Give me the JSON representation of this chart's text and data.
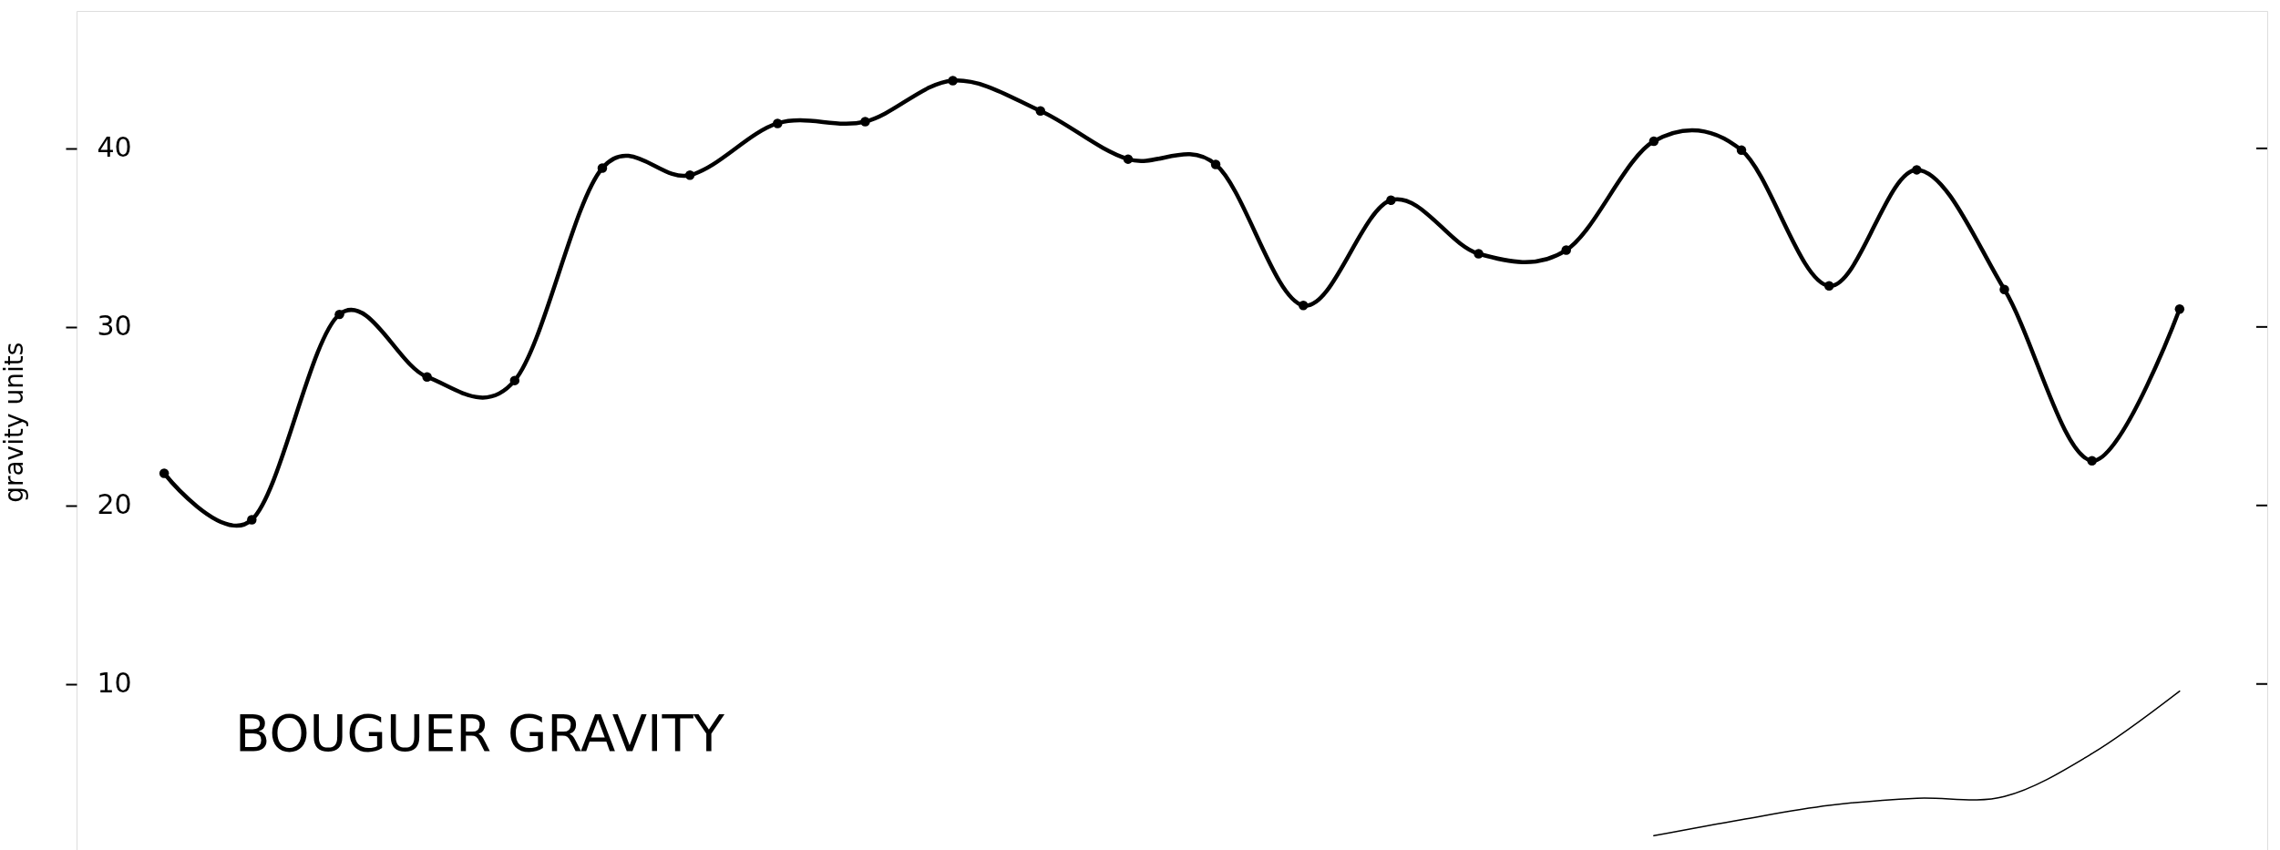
{
  "chart_data": {
    "type": "line",
    "title": "BOUGUER GRAVITY",
    "ylabel": "gravity units",
    "categories": [
      null,
      null,
      null,
      null,
      null,
      null,
      null,
      null,
      null,
      null,
      null,
      null,
      null,
      null,
      null,
      null,
      null,
      null,
      null,
      null,
      null,
      null,
      null,
      null
    ],
    "series": [
      {
        "color": "#000000",
        "marker": "circle",
        "values": [
          21.8,
          19.2,
          30.7,
          27.2,
          27.0,
          38.9,
          38.5,
          41.4,
          41.5,
          43.8,
          42.1,
          39.4,
          39.1,
          31.2,
          37.1,
          34.1,
          34.3,
          40.4,
          39.9,
          32.3,
          38.8,
          32.1,
          22.5,
          31.0
        ]
      },
      {
        "color": "#000000",
        "marker": "none",
        "values": [
          null,
          null,
          null,
          null,
          null,
          null,
          null,
          null,
          null,
          null,
          null,
          null,
          null,
          null,
          null,
          null,
          null,
          1.5,
          2.4,
          3.2,
          3.6,
          3.7,
          6.1,
          9.6
        ]
      }
    ],
    "ylim": [
      0.7,
      47.7
    ],
    "yticks": [
      10,
      20,
      30,
      40
    ],
    "grid": false,
    "line_style": "solid"
  }
}
